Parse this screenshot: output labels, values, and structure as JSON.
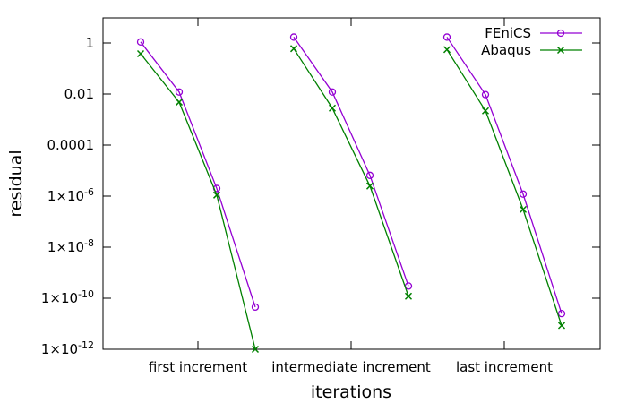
{
  "chart_data": {
    "type": "line",
    "title": "",
    "xlabel": "iterations",
    "ylabel": "residual",
    "yscale": "log",
    "ylim": [
      1e-12,
      10
    ],
    "grid": false,
    "legend_position": "top-right",
    "categories": [
      "first increment",
      "intermediate increment",
      "last increment"
    ],
    "ytick_labels": [
      {
        "value": 1,
        "base": "1",
        "exp": ""
      },
      {
        "value": 0.01,
        "base": "0.01",
        "exp": ""
      },
      {
        "value": 0.0001,
        "base": "0.0001",
        "exp": ""
      },
      {
        "value": 1e-06,
        "base": "1×10",
        "exp": "-6"
      },
      {
        "value": 1e-08,
        "base": "1×10",
        "exp": "-8"
      },
      {
        "value": 1e-10,
        "base": "1×10",
        "exp": "-10"
      },
      {
        "value": 1e-12,
        "base": "1×10",
        "exp": "-12"
      }
    ],
    "series": [
      {
        "name": "FEniCS",
        "color": "#9400d3",
        "marker": "circle",
        "segments": [
          {
            "category": "first increment",
            "values": [
              1.1,
              0.012,
              2e-06,
              4.5e-11
            ]
          },
          {
            "category": "intermediate increment",
            "values": [
              1.7,
              0.012,
              6.5e-06,
              3e-10
            ]
          },
          {
            "category": "last increment",
            "values": [
              1.7,
              0.0095,
              1.2e-06,
              2.5e-11
            ]
          }
        ]
      },
      {
        "name": "Abaqus",
        "color": "#008000",
        "marker": "cross",
        "segments": [
          {
            "category": "first increment",
            "values": [
              0.38,
              0.0048,
              1.1e-06,
              1e-12
            ]
          },
          {
            "category": "intermediate increment",
            "values": [
              0.6,
              0.0028,
              2.5e-06,
              1.2e-10
            ]
          },
          {
            "category": "last increment",
            "values": [
              0.55,
              0.0022,
              3e-07,
              8.5e-12
            ]
          }
        ]
      }
    ]
  }
}
